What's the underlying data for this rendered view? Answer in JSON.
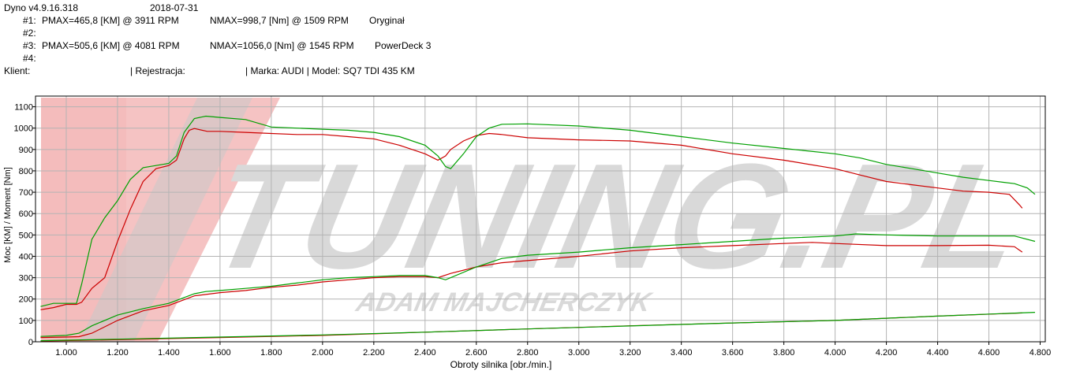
{
  "header": {
    "app_version": "Dyno v4.9.16.318",
    "date": "2018-07-31",
    "runs": [
      {
        "label": "#1:",
        "pmax": "PMAX=465,8 [KM] @ 3911 RPM",
        "nmax": "NMAX=998,7 [Nm] @ 1509 RPM",
        "name": "Oryginał"
      },
      {
        "label": "#2:",
        "pmax": "",
        "nmax": "",
        "name": ""
      },
      {
        "label": "#3:",
        "pmax": "PMAX=505,6 [KM] @ 4081 RPM",
        "nmax": "NMAX=1056,0 [Nm] @ 1545 RPM",
        "name": "PowerDeck 3"
      },
      {
        "label": "#4:",
        "pmax": "",
        "nmax": "",
        "name": ""
      }
    ],
    "client_label": "Klient:",
    "registration": "| Rejestracja:",
    "make_model": "| Marka: AUDI | Model: SQ7 TDI 435 KM"
  },
  "watermark": {
    "main": "TUNING.PL",
    "sub": "ADAM MAJCHERCZYK"
  },
  "colors": {
    "original": "#cc0000",
    "powerdeck": "#00a000",
    "grid": "#b4b4b4",
    "watermark_gray": "#d9d9d9",
    "watermark_red": "#f4bcbc"
  },
  "chart_data": {
    "type": "line",
    "xlabel": "Obroty silnika [obr./min.]",
    "ylabel": "Moc [KM] / Moment [Nm]",
    "xlim": [
      880,
      4820
    ],
    "ylim": [
      0,
      1150
    ],
    "x_ticks": [
      1000,
      1200,
      1400,
      1600,
      1800,
      2000,
      2200,
      2400,
      2600,
      2800,
      3000,
      3200,
      3400,
      3600,
      3800,
      4000,
      4200,
      4400,
      4600,
      4800
    ],
    "x_tick_labels": [
      "1.000",
      "1.200",
      "1.400",
      "1.600",
      "1.800",
      "2.000",
      "2.200",
      "2.400",
      "2.600",
      "2.800",
      "3.000",
      "3.200",
      "3.400",
      "3.600",
      "3.800",
      "4.000",
      "4.200",
      "4.400",
      "4.600",
      "4.800"
    ],
    "y_ticks": [
      0,
      100,
      200,
      300,
      400,
      500,
      600,
      700,
      800,
      900,
      1000,
      1100
    ],
    "y_tick_labels": [
      "0",
      "100",
      "200",
      "300",
      "400",
      "500",
      "600",
      "700",
      "800",
      "900",
      "1000",
      "1100"
    ],
    "grid": true,
    "series": [
      {
        "name": "Oryginał",
        "kind": "torque",
        "color": "#cc0000",
        "x": [
          900,
          950,
          1000,
          1040,
          1060,
          1100,
          1150,
          1200,
          1250,
          1300,
          1350,
          1400,
          1430,
          1460,
          1480,
          1500,
          1550,
          1600,
          1700,
          1800,
          1900,
          2000,
          2100,
          2200,
          2300,
          2400,
          2450,
          2480,
          2500,
          2550,
          2600,
          2650,
          2700,
          2800,
          3000,
          3200,
          3400,
          3600,
          3800,
          4000,
          4100,
          4200,
          4300,
          4400,
          4500,
          4600,
          4680,
          4720,
          4730
        ],
        "y": [
          150,
          160,
          175,
          175,
          185,
          250,
          300,
          470,
          620,
          750,
          810,
          825,
          850,
          950,
          990,
          998,
          985,
          985,
          980,
          975,
          970,
          970,
          960,
          950,
          920,
          880,
          850,
          870,
          900,
          940,
          965,
          975,
          970,
          955,
          945,
          940,
          920,
          880,
          850,
          810,
          780,
          750,
          735,
          720,
          705,
          700,
          690,
          640,
          625
        ]
      },
      {
        "name": "PowerDeck 3",
        "kind": "torque",
        "color": "#00a000",
        "x": [
          900,
          950,
          1000,
          1040,
          1060,
          1100,
          1150,
          1200,
          1250,
          1300,
          1350,
          1400,
          1430,
          1460,
          1500,
          1545,
          1600,
          1700,
          1800,
          1900,
          2000,
          2100,
          2200,
          2300,
          2400,
          2450,
          2480,
          2500,
          2550,
          2600,
          2650,
          2700,
          2800,
          3000,
          3200,
          3400,
          3600,
          3800,
          4000,
          4100,
          4200,
          4300,
          4400,
          4500,
          4600,
          4700,
          4750,
          4780
        ],
        "y": [
          165,
          180,
          180,
          180,
          270,
          480,
          580,
          660,
          760,
          815,
          825,
          835,
          870,
          980,
          1045,
          1056,
          1050,
          1040,
          1005,
          1000,
          995,
          990,
          980,
          960,
          920,
          870,
          820,
          810,
          880,
          960,
          1000,
          1018,
          1020,
          1010,
          990,
          960,
          930,
          905,
          880,
          860,
          830,
          810,
          790,
          770,
          755,
          740,
          720,
          690
        ]
      },
      {
        "name": "Oryginał",
        "kind": "power",
        "color": "#cc0000",
        "x": [
          900,
          1000,
          1050,
          1100,
          1200,
          1300,
          1400,
          1500,
          1600,
          1700,
          1800,
          1900,
          2000,
          2100,
          2200,
          2300,
          2400,
          2450,
          2500,
          2600,
          2700,
          2800,
          3000,
          3200,
          3400,
          3600,
          3800,
          3911,
          4000,
          4200,
          4400,
          4600,
          4700,
          4730
        ],
        "y": [
          20,
          22,
          24,
          40,
          100,
          145,
          170,
          215,
          230,
          240,
          255,
          265,
          280,
          290,
          300,
          305,
          305,
          300,
          320,
          350,
          370,
          380,
          400,
          425,
          440,
          450,
          460,
          465,
          460,
          450,
          450,
          452,
          445,
          420
        ]
      },
      {
        "name": "PowerDeck 3",
        "kind": "power",
        "color": "#00a000",
        "x": [
          900,
          1000,
          1050,
          1100,
          1200,
          1300,
          1400,
          1500,
          1545,
          1600,
          1700,
          1800,
          1900,
          2000,
          2100,
          2200,
          2300,
          2400,
          2450,
          2480,
          2500,
          2600,
          2700,
          2800,
          3000,
          3200,
          3400,
          3600,
          3800,
          4000,
          4081,
          4200,
          4400,
          4600,
          4700,
          4780
        ],
        "y": [
          25,
          30,
          40,
          75,
          125,
          155,
          180,
          225,
          235,
          240,
          250,
          260,
          275,
          290,
          300,
          305,
          310,
          310,
          300,
          290,
          300,
          350,
          390,
          405,
          420,
          440,
          455,
          470,
          485,
          495,
          505,
          500,
          495,
          495,
          495,
          470
        ]
      },
      {
        "name": "Oryginał",
        "kind": "losses",
        "color": "#cc0000",
        "x": [
          900,
          1200,
          1600,
          2000,
          2400,
          2800,
          3200,
          3600,
          4000,
          4400,
          4730
        ],
        "y": [
          3,
          10,
          20,
          30,
          45,
          60,
          75,
          88,
          100,
          120,
          135
        ]
      },
      {
        "name": "PowerDeck 3",
        "kind": "losses",
        "color": "#00a000",
        "x": [
          900,
          1200,
          1600,
          2000,
          2400,
          2800,
          3200,
          3600,
          4000,
          4400,
          4780
        ],
        "y": [
          5,
          12,
          22,
          32,
          45,
          60,
          74,
          88,
          100,
          120,
          138
        ]
      }
    ]
  }
}
